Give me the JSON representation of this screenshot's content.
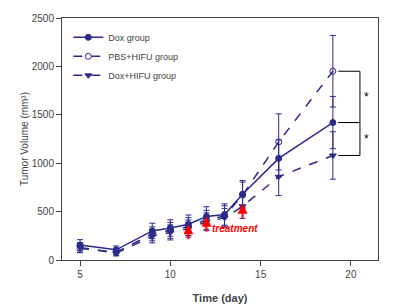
{
  "chart_data": {
    "type": "line",
    "xlabel": "Time (day)",
    "ylabel": "Tumor Volume (mm³)",
    "xlim": [
      4,
      21.5
    ],
    "ylim": [
      0,
      2500
    ],
    "xticks": [
      5,
      10,
      15,
      20
    ],
    "yticks": [
      0,
      500,
      1000,
      1500,
      2000,
      2500
    ],
    "grid": false,
    "legend": "upper left",
    "series": [
      {
        "name": "Dox group",
        "color": "#2b2b8c",
        "line_style": "solid",
        "marker": "circle",
        "x": [
          5,
          7,
          9,
          10,
          11,
          12,
          13,
          14,
          16,
          19
        ],
        "values": [
          155,
          105,
          300,
          330,
          370,
          450,
          470,
          680,
          1050,
          1420
        ],
        "errors": [
          55,
          40,
          80,
          85,
          95,
          100,
          110,
          140,
          190,
          270
        ]
      },
      {
        "name": "PBS+HIFU group",
        "color": "#2b2b8c",
        "line_style": "dashed",
        "marker": "circle-open",
        "x": [
          5,
          7,
          9,
          10,
          11,
          12,
          13,
          14,
          16,
          19
        ],
        "values": [
          120,
          80,
          270,
          305,
          345,
          415,
          455,
          670,
          1220,
          1950
        ],
        "errors": [
          45,
          30,
          72,
          82,
          92,
          98,
          105,
          135,
          290,
          370
        ]
      },
      {
        "name": "Dox+HIFU group",
        "color": "#2b2b8c",
        "line_style": "dashed",
        "marker": "triangle-down",
        "x": [
          5,
          7,
          9,
          10,
          11,
          12,
          13,
          14,
          16,
          19
        ],
        "values": [
          130,
          70,
          245,
          285,
          325,
          395,
          435,
          555,
          860,
          1080
        ],
        "errors": [
          50,
          28,
          68,
          78,
          88,
          92,
          98,
          125,
          195,
          245
        ]
      }
    ],
    "annotations": [
      {
        "text": "treatment",
        "x": 12.2,
        "y": 245,
        "color": "red"
      },
      {
        "text": "*",
        "x": 20.6,
        "y": 1680,
        "color": "black"
      },
      {
        "text": "*",
        "x": 20.6,
        "y": 1250,
        "color": "black"
      }
    ],
    "arrows": [
      {
        "x": 11,
        "y_tip": 370,
        "y_base": 200,
        "color": "red"
      },
      {
        "x": 12,
        "y_tip": 450,
        "y_base": 280,
        "color": "red"
      },
      {
        "x": 14,
        "y_tip": 580,
        "y_base": 415,
        "color": "red"
      }
    ],
    "brackets": [
      {
        "x1": 19.3,
        "x2": 20.5,
        "y1": 1950,
        "y2": 1420,
        "color": "black"
      },
      {
        "x1": 19.3,
        "x2": 20.5,
        "y1": 1420,
        "y2": 1080,
        "color": "black"
      }
    ]
  }
}
